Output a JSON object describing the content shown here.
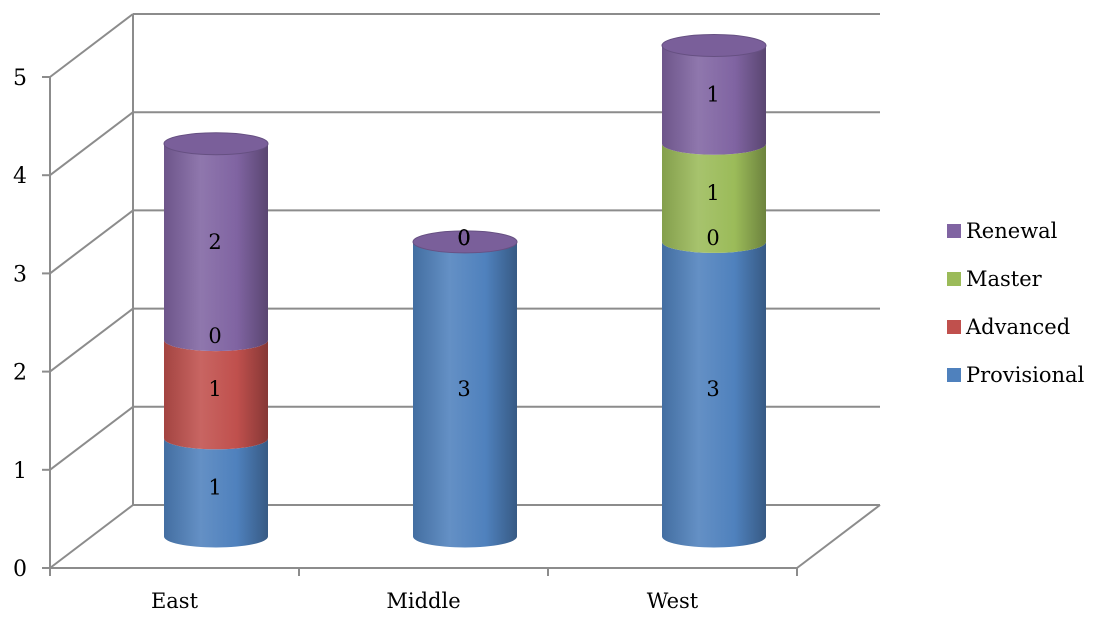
{
  "chart_data": {
    "type": "bar",
    "variant": "stacked-3d-cylinder",
    "title": "",
    "xlabel": "",
    "ylabel": "",
    "categories": [
      "East",
      "Middle",
      "West"
    ],
    "ylim": [
      0,
      5
    ],
    "yticks": [
      "0",
      "1",
      "2",
      "3",
      "4",
      "5"
    ],
    "grid": true,
    "legend_position": "right",
    "legend_order": [
      "Renewal",
      "Master",
      "Advanced",
      "Provisional"
    ],
    "series": [
      {
        "name": "Provisional",
        "color": "#4F81BD",
        "values": [
          1,
          3,
          3
        ],
        "labels": [
          "1",
          "3",
          "3"
        ]
      },
      {
        "name": "Advanced",
        "color": "#C0504D",
        "values": [
          1,
          0,
          0
        ],
        "labels": [
          "1",
          "0",
          "0"
        ]
      },
      {
        "name": "Master",
        "color": "#9BBB59",
        "values": [
          0,
          0,
          1
        ],
        "labels": [
          "0",
          "0",
          "1"
        ]
      },
      {
        "name": "Renewal",
        "color": "#8064A2",
        "values": [
          2,
          0,
          1
        ],
        "labels": [
          "2",
          "0",
          "1"
        ]
      }
    ]
  }
}
